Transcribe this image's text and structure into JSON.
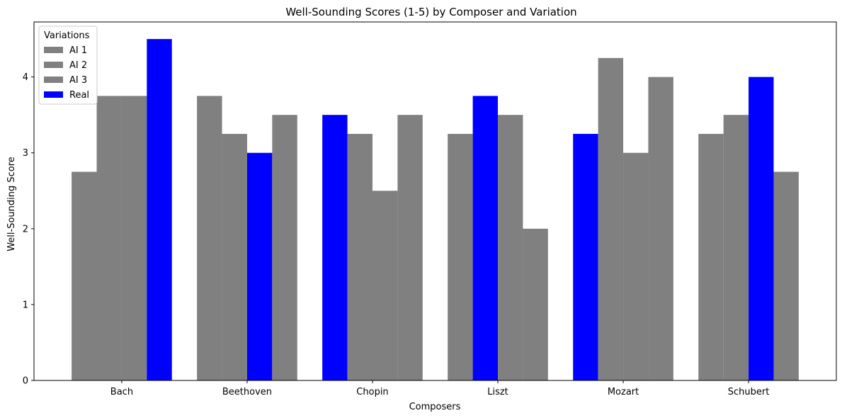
{
  "chart_data": {
    "type": "bar",
    "title": "Well-Sounding Scores (1-5) by Composer and Variation",
    "xlabel": "Composers",
    "ylabel": "Well-Sounding Score",
    "categories": [
      "Bach",
      "Beethoven",
      "Chopin",
      "Liszt",
      "Mozart",
      "Schubert"
    ],
    "ylim": [
      0,
      4.725
    ],
    "yticks": [
      0,
      1,
      2,
      3,
      4
    ],
    "grid": false,
    "legend": {
      "title": "Variations",
      "placement": "top-left",
      "entries": [
        {
          "label": "AI 1",
          "color": "#808080"
        },
        {
          "label": "AI 2",
          "color": "#808080"
        },
        {
          "label": "AI 3",
          "color": "#808080"
        },
        {
          "label": "Real",
          "color": "#0000ff"
        }
      ]
    },
    "bars": [
      {
        "category": "Bach",
        "values": [
          2.75,
          3.75,
          3.75,
          4.5
        ],
        "colors": [
          "#808080",
          "#808080",
          "#808080",
          "#0000ff"
        ]
      },
      {
        "category": "Beethoven",
        "values": [
          3.75,
          3.25,
          3.0,
          3.5
        ],
        "colors": [
          "#808080",
          "#808080",
          "#0000ff",
          "#808080"
        ]
      },
      {
        "category": "Chopin",
        "values": [
          3.5,
          3.25,
          2.5,
          3.5
        ],
        "colors": [
          "#0000ff",
          "#808080",
          "#808080",
          "#808080"
        ]
      },
      {
        "category": "Liszt",
        "values": [
          3.25,
          3.75,
          3.5,
          2.0
        ],
        "colors": [
          "#808080",
          "#0000ff",
          "#808080",
          "#808080"
        ]
      },
      {
        "category": "Mozart",
        "values": [
          3.25,
          4.25,
          3.0,
          4.0
        ],
        "colors": [
          "#0000ff",
          "#808080",
          "#808080",
          "#808080"
        ]
      },
      {
        "category": "Schubert",
        "values": [
          3.25,
          3.5,
          4.0,
          2.75
        ],
        "colors": [
          "#808080",
          "#808080",
          "#0000ff",
          "#808080"
        ]
      }
    ],
    "colors": {
      "ai": "#808080",
      "real": "#0000ff"
    }
  }
}
